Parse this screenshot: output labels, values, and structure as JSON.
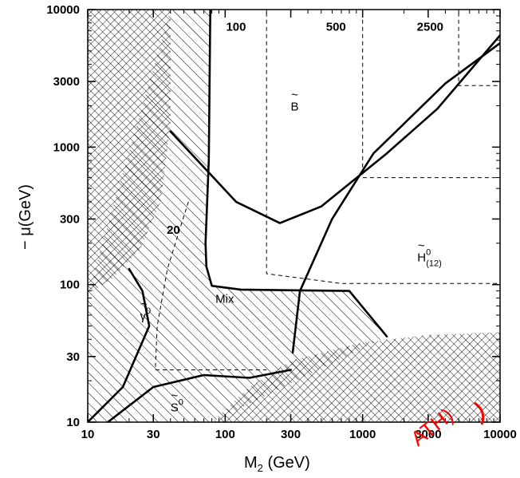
{
  "chart_data": {
    "type": "line",
    "xlabel": "M",
    "xlabel_sub": "2",
    "xlabel_unit": " (GeV)",
    "ylabel": "− μ(GeV)",
    "x_scale": "log",
    "y_scale": "log",
    "xlim": [
      10,
      10000
    ],
    "ylim": [
      10,
      10000
    ],
    "x_ticks": [
      {
        "value": 10,
        "label": "10"
      },
      {
        "value": 30,
        "label": "30"
      },
      {
        "value": 100,
        "label": "100"
      },
      {
        "value": 300,
        "label": "300"
      },
      {
        "value": 1000,
        "label": "1000"
      },
      {
        "value": 3000,
        "label": "3000"
      },
      {
        "value": 10000,
        "label": "10000"
      }
    ],
    "y_ticks": [
      {
        "value": 10,
        "label": "10"
      },
      {
        "value": 30,
        "label": "30"
      },
      {
        "value": 100,
        "label": "100"
      },
      {
        "value": 300,
        "label": "300"
      },
      {
        "value": 1000,
        "label": "1000"
      },
      {
        "value": 3000,
        "label": "3000"
      },
      {
        "value": 10000,
        "label": "10000"
      }
    ],
    "regions": [
      {
        "label_main": "B",
        "label_sup": "",
        "label_sub": "",
        "tilde": true,
        "at": [
          300,
          2000
        ]
      },
      {
        "label_main": "H",
        "label_sup": "0",
        "label_sub": "(12)",
        "tilde": true,
        "at": [
          2500,
          160
        ]
      },
      {
        "label_main": "Mix",
        "label_sup": "",
        "label_sub": "",
        "tilde": false,
        "at": [
          85,
          80
        ]
      },
      {
        "label_main": "γ",
        "label_sup": "0",
        "label_sub": "",
        "tilde": true,
        "at": [
          24,
          60
        ]
      },
      {
        "label_main": "S",
        "label_sup": "0",
        "label_sub": "",
        "tilde": true,
        "at": [
          40,
          13
        ]
      }
    ],
    "contour_labels": [
      {
        "text": "100",
        "at": [
          120,
          7500
        ]
      },
      {
        "text": "500",
        "at": [
          640,
          7500
        ]
      },
      {
        "text": "2500",
        "at": [
          3100,
          7500
        ]
      },
      {
        "text": "20",
        "at": [
          42,
          250
        ]
      }
    ],
    "solid_boundaries": [
      {
        "points": [
          [
            78,
            10000
          ],
          [
            76,
            800
          ],
          [
            72,
            200
          ],
          [
            73,
            135
          ],
          [
            80,
            98
          ],
          [
            130,
            92
          ],
          [
            800,
            90
          ],
          [
            1500,
            42
          ]
        ]
      },
      {
        "points": [
          [
            40,
            1300
          ],
          [
            120,
            400
          ],
          [
            250,
            280
          ],
          [
            500,
            370
          ],
          [
            1500,
            900
          ],
          [
            3500,
            1900
          ],
          [
            10000,
            6500
          ]
        ]
      },
      {
        "points": [
          [
            310,
            32
          ],
          [
            350,
            90
          ],
          [
            600,
            300
          ],
          [
            1200,
            900
          ],
          [
            4000,
            2900
          ],
          [
            10000,
            5700
          ]
        ]
      },
      {
        "points": [
          [
            10,
            10
          ],
          [
            18,
            18
          ],
          [
            28,
            50
          ],
          [
            25,
            90
          ],
          [
            20,
            130
          ]
        ]
      },
      {
        "points": [
          [
            14,
            10
          ],
          [
            30,
            18
          ],
          [
            70,
            22
          ],
          [
            150,
            21
          ],
          [
            300,
            24
          ]
        ]
      }
    ],
    "dashed_contours": [
      {
        "label": "100",
        "points": [
          [
            200,
            9500
          ],
          [
            200,
            120
          ],
          [
            700,
            102
          ],
          [
            10000,
            102
          ]
        ]
      },
      {
        "label": "500",
        "points": [
          [
            1000,
            9500
          ],
          [
            1000,
            600
          ],
          [
            10000,
            600
          ]
        ]
      },
      {
        "label": "2500",
        "points": [
          [
            5000,
            9500
          ],
          [
            5000,
            2800
          ],
          [
            10000,
            2800
          ]
        ]
      },
      {
        "label": "20",
        "points": [
          [
            54,
            400
          ],
          [
            38,
            130
          ],
          [
            32,
            50
          ],
          [
            31,
            24
          ],
          [
            200,
            24
          ]
        ]
      }
    ],
    "excluded_regions": [
      {
        "style": "cross-hatch",
        "bound": [
          [
            10,
            10000
          ],
          [
            40,
            10000
          ],
          [
            40,
            1500
          ],
          [
            34,
            400
          ],
          [
            24,
            180
          ],
          [
            15,
            110
          ],
          [
            10,
            85
          ]
        ]
      },
      {
        "style": "cross-hatch",
        "bound": [
          [
            80,
            10
          ],
          [
            150,
            18
          ],
          [
            300,
            28
          ],
          [
            1000,
            38
          ],
          [
            3000,
            43
          ],
          [
            10000,
            45
          ],
          [
            10000,
            10
          ]
        ]
      },
      {
        "style": "diagonal",
        "bound": [
          [
            40,
            10000
          ],
          [
            78,
            10000
          ],
          [
            76,
            800
          ],
          [
            72,
            200
          ],
          [
            73,
            135
          ],
          [
            80,
            98
          ],
          [
            130,
            92
          ],
          [
            800,
            90
          ],
          [
            1500,
            42
          ],
          [
            80,
            10
          ],
          [
            10,
            10
          ],
          [
            10,
            85
          ]
        ]
      }
    ],
    "stamp": {
      "text": "ATH)",
      "color": "#ff0000"
    }
  }
}
